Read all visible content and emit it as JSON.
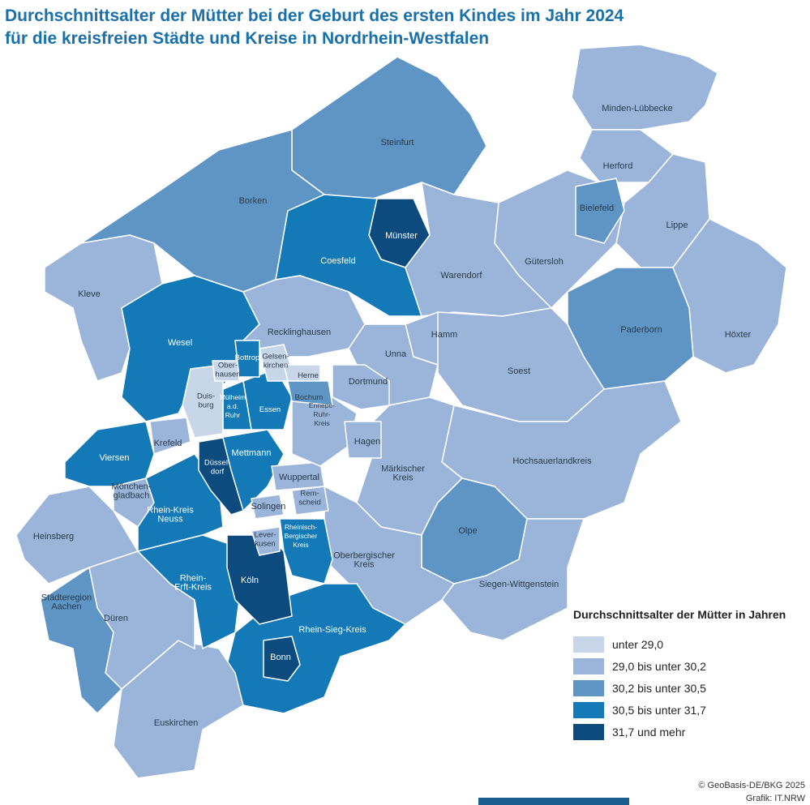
{
  "title": [
    "Durchschnittsalter der Mütter bei der Geburt des ersten Kindes im Jahr 2024",
    "für die kreisfreien Städte und Kreise in Nordrhein-Westfalen"
  ],
  "legend": {
    "title": "Durchschnittsalter der Mütter in Jahren",
    "classes": [
      {
        "label": "unter 29,0",
        "color": "#c8d6ea"
      },
      {
        "label": "29,0 bis unter 30,2",
        "color": "#9ab5d9"
      },
      {
        "label": "30,2 bis unter 30,5",
        "color": "#5f95c4"
      },
      {
        "label": "30,5 bis unter 31,7",
        "color": "#1479b7"
      },
      {
        "label": "31,7 und mehr",
        "color": "#0d4a7e"
      }
    ]
  },
  "regions": [
    {
      "name": [
        "Minden-Lübbecke"
      ],
      "class": 1
    },
    {
      "name": [
        "Herford"
      ],
      "class": 1
    },
    {
      "name": [
        "Lippe"
      ],
      "class": 1
    },
    {
      "name": [
        "Höxter"
      ],
      "class": 1
    },
    {
      "name": [
        "Paderborn"
      ],
      "class": 2
    },
    {
      "name": [
        "Gütersloh"
      ],
      "class": 1
    },
    {
      "name": [
        "Bielefeld"
      ],
      "class": 2
    },
    {
      "name": [
        "Steinfurt"
      ],
      "class": 2
    },
    {
      "name": [
        "Borken"
      ],
      "class": 2
    },
    {
      "name": [
        "Münster"
      ],
      "class": 4
    },
    {
      "name": [
        "Coesfeld"
      ],
      "class": 3
    },
    {
      "name": [
        "Warendorf"
      ],
      "class": 1
    },
    {
      "name": [
        "Kleve"
      ],
      "class": 1
    },
    {
      "name": [
        "Wesel"
      ],
      "class": 3
    },
    {
      "name": [
        "Recklinghausen"
      ],
      "class": 1
    },
    {
      "name": [
        "Hamm"
      ],
      "class": 1
    },
    {
      "name": [
        "Unna"
      ],
      "class": 1
    },
    {
      "name": [
        "Dortmund"
      ],
      "class": 1
    },
    {
      "name": [
        "Soest"
      ],
      "class": 1
    },
    {
      "name": [
        "Hochsauerlandkreis"
      ],
      "class": 1
    },
    {
      "name": [
        "Märkischer",
        "Kreis"
      ],
      "class": 1
    },
    {
      "name": [
        "Olpe"
      ],
      "class": 2
    },
    {
      "name": [
        "Siegen-Wittgenstein"
      ],
      "class": 1
    },
    {
      "name": [
        "Oberbergischer",
        "Kreis"
      ],
      "class": 1
    },
    {
      "name": [
        "Rhein-Sieg-Kreis"
      ],
      "class": 3
    },
    {
      "name": [
        "Bonn"
      ],
      "class": 4
    },
    {
      "name": [
        "Euskirchen"
      ],
      "class": 1
    },
    {
      "name": [
        "Düren"
      ],
      "class": 1
    },
    {
      "name": [
        "Städteregion",
        "Aachen"
      ],
      "class": 2
    },
    {
      "name": [
        "Heinsberg"
      ],
      "class": 1
    },
    {
      "name": [
        "Mönchen-",
        "gladbach"
      ],
      "class": 1
    },
    {
      "name": [
        "Viersen"
      ],
      "class": 3
    },
    {
      "name": [
        "Krefeld"
      ],
      "class": 1
    },
    {
      "name": [
        "Rhein-Kreis",
        "Neuss"
      ],
      "class": 3
    },
    {
      "name": [
        "Rhein-",
        "Erft-Kreis"
      ],
      "class": 3
    },
    {
      "name": [
        "Köln"
      ],
      "class": 4
    },
    {
      "name": [
        "Lever-",
        "kusen"
      ],
      "class": 1
    },
    {
      "name": [
        "Rheinisch-",
        "Bergischer",
        "Kreis"
      ],
      "class": 3
    },
    {
      "name": [
        "Mettmann"
      ],
      "class": 3
    },
    {
      "name": [
        "Düssel-",
        "dorf"
      ],
      "class": 4
    },
    {
      "name": [
        "Solingen"
      ],
      "class": 1
    },
    {
      "name": [
        "Wuppertal"
      ],
      "class": 1
    },
    {
      "name": [
        "Rem-",
        "scheid"
      ],
      "class": 1
    },
    {
      "name": [
        "Ennepe-",
        "Ruhr-",
        "Kreis"
      ],
      "class": 1
    },
    {
      "name": [
        "Hagen"
      ],
      "class": 1
    },
    {
      "name": [
        "Essen"
      ],
      "class": 3
    },
    {
      "name": [
        "Mülheim",
        "a.d.",
        "Ruhr"
      ],
      "class": 3
    },
    {
      "name": [
        "Duis-",
        "burg"
      ],
      "class": 0
    },
    {
      "name": [
        "Ober-",
        "hausen"
      ],
      "class": 0
    },
    {
      "name": [
        "Bottrop"
      ],
      "class": 3
    },
    {
      "name": [
        "Gelsen-",
        "kirchen"
      ],
      "class": 0
    },
    {
      "name": [
        "Herne"
      ],
      "class": 0
    },
    {
      "name": [
        "Bochum"
      ],
      "class": 2
    }
  ],
  "credits": [
    "© GeoBasis-DE/BKG 2025",
    "Grafik: IT.NRW"
  ]
}
